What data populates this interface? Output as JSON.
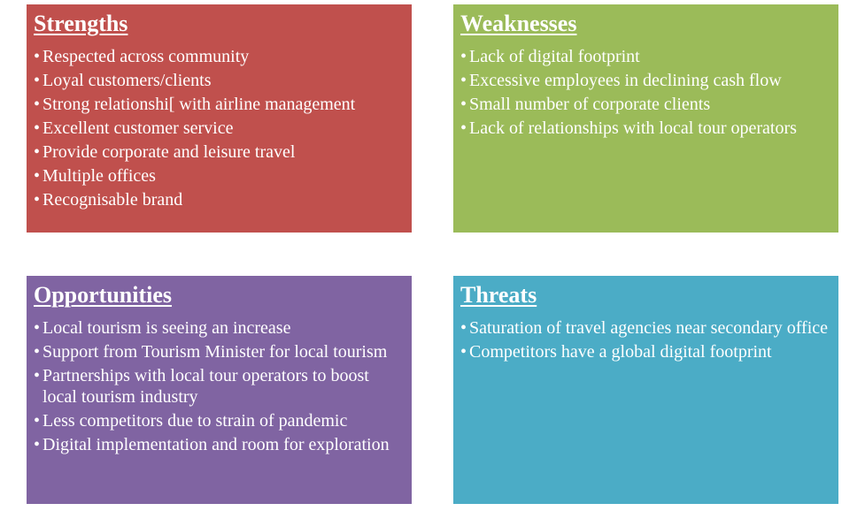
{
  "swot": {
    "strengths": {
      "title": "Strengths",
      "color": "#c0504d",
      "items": [
        "Respected across community",
        "Loyal customers/clients",
        "Strong relationshi[ with airline management",
        "Excellent customer service",
        "Provide corporate and leisure travel",
        "Multiple offices",
        "Recognisable brand"
      ]
    },
    "weaknesses": {
      "title": "Weaknesses",
      "color": "#9bbb59",
      "items": [
        "Lack of digital footprint",
        "Excessive employees in declining cash flow",
        "Small number of corporate clients",
        "Lack of relationships with local tour operators"
      ]
    },
    "opportunities": {
      "title": "Opportunities",
      "color": "#8064a2",
      "items": [
        "Local tourism is seeing an increase",
        "Support from Tourism Minister for local tourism",
        "Partnerships with local tour operators to boost local tourism industry",
        "Less competitors due to strain of pandemic",
        "Digital implementation and room for exploration"
      ]
    },
    "threats": {
      "title": "Threats",
      "color": "#4bacc6",
      "items": [
        "Saturation of travel agencies near secondary office",
        "Competitors  have a global digital footprint"
      ]
    }
  }
}
